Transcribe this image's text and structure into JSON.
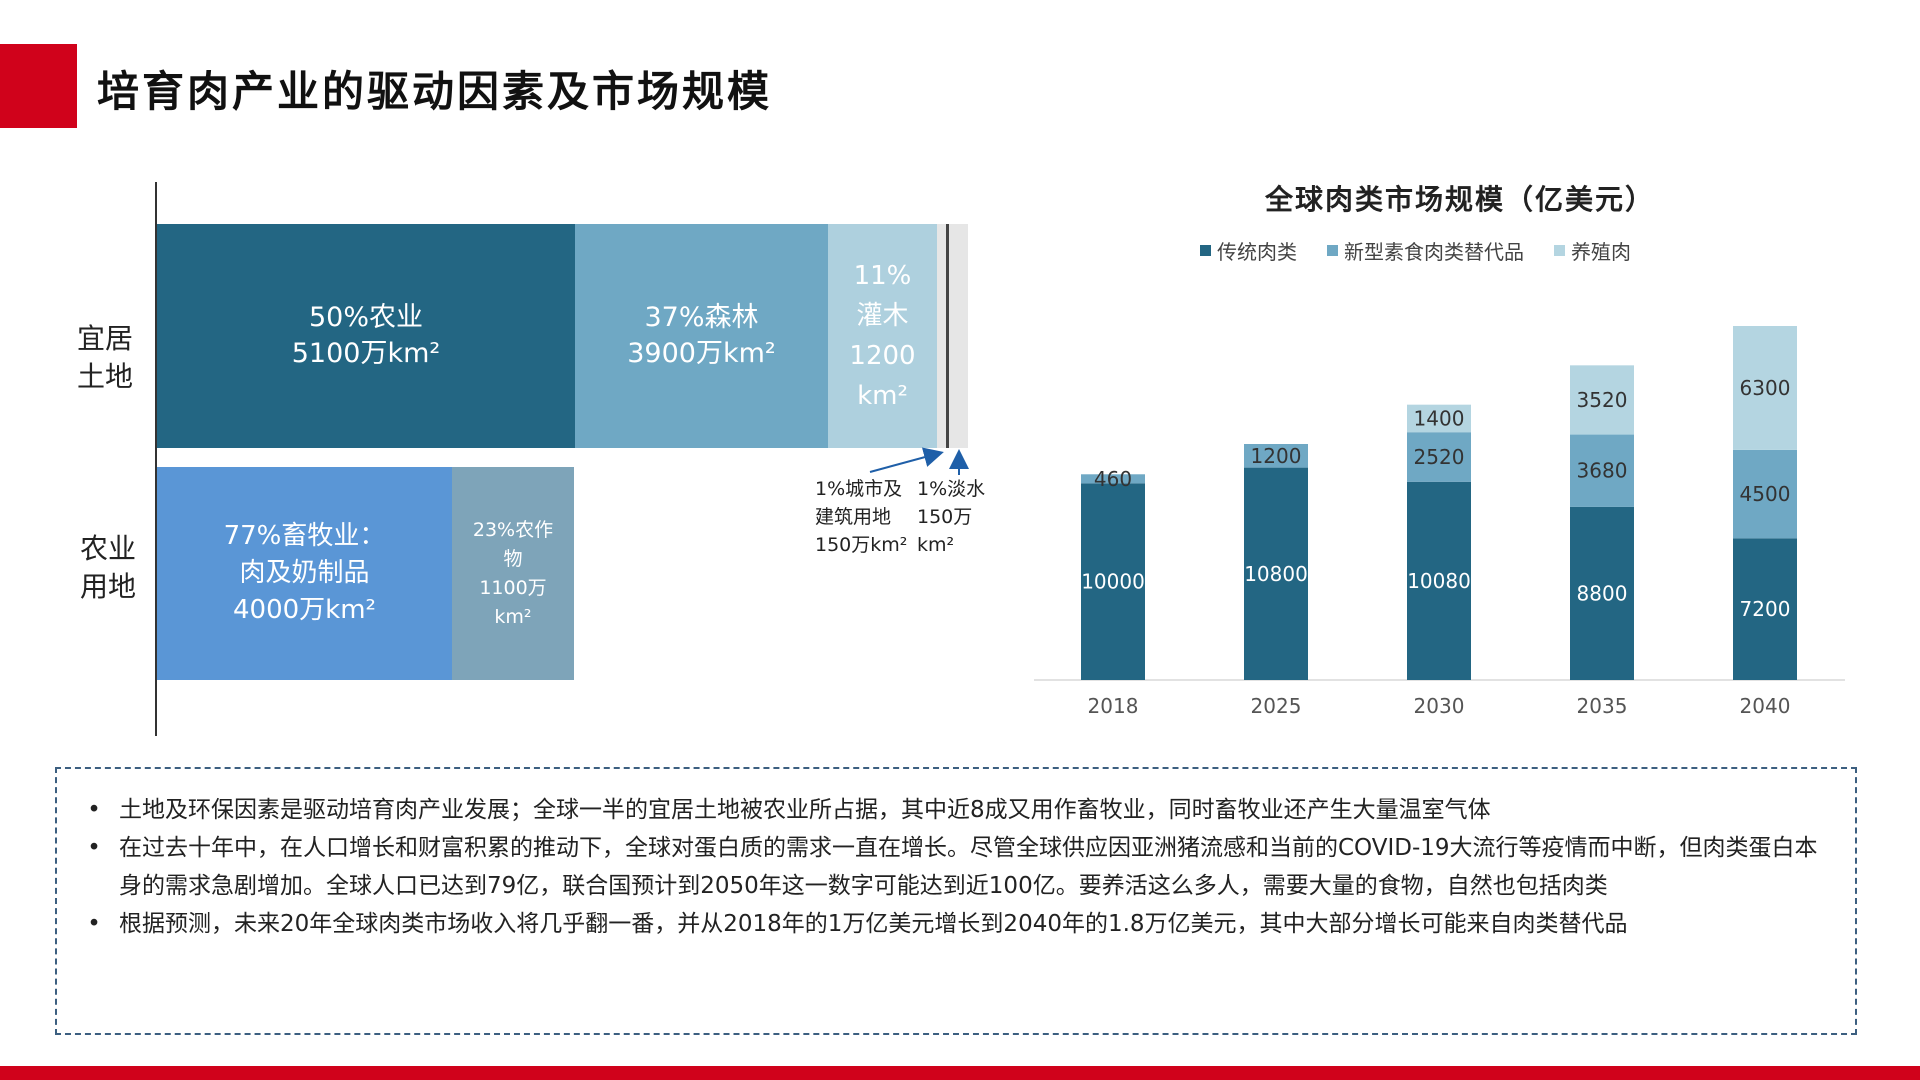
{
  "title": "培育肉产业的驱动因素及市场规模",
  "land": {
    "rows": [
      {
        "label_lines": [
          "宜居",
          "土地"
        ]
      },
      {
        "label_lines": [
          "农业",
          "用地"
        ]
      }
    ],
    "habitable": [
      {
        "lines": [
          "50%农业",
          "5100万km²"
        ],
        "percent": 50,
        "color": "#236683"
      },
      {
        "lines": [
          "37%森林",
          "3900万km²"
        ],
        "percent": 37,
        "color": "#6fa8c4"
      },
      {
        "lines": [
          "11%",
          "灌木",
          "1200",
          "km²"
        ],
        "percent": 11,
        "color": "#aed0de"
      },
      {
        "lines": [],
        "percent": 1,
        "color": "#e6e6e6"
      },
      {
        "lines": [],
        "percent": 1,
        "color": "#e6e6e6"
      }
    ],
    "agricultural": [
      {
        "lines": [
          "77%畜牧业：",
          "肉及奶制品",
          "4000万km²"
        ],
        "percent": 77,
        "color": "#5a96d6"
      },
      {
        "lines": [
          "23%农作",
          "物",
          "1100万",
          "km²"
        ],
        "percent": 23,
        "color": "#7ea4b9"
      }
    ],
    "notes": [
      {
        "lines": [
          "1%城市及",
          "建筑用地",
          "150万km²"
        ]
      },
      {
        "lines": [
          "1%淡水",
          "150万",
          "km²"
        ]
      }
    ]
  },
  "chart_data": {
    "type": "bar",
    "stacked": true,
    "title": "全球肉类市场规模（亿美元）",
    "categories": [
      "2018",
      "2025",
      "2030",
      "2035",
      "2040"
    ],
    "series": [
      {
        "name": "传统肉类",
        "values": [
          10000,
          10800,
          10080,
          8800,
          7200
        ],
        "color": "#236683"
      },
      {
        "name": "新型素食肉类替代品",
        "values": [
          460,
          1200,
          2520,
          3680,
          4500
        ],
        "color": "#6fa8c4"
      },
      {
        "name": "养殖肉",
        "values": [
          0,
          0,
          1400,
          3520,
          6300
        ],
        "color": "#b4d5e1"
      }
    ],
    "data_labels": [
      [
        "10000",
        "10800",
        "10080",
        "8800",
        "7200"
      ],
      [
        "460",
        "1200",
        "2520",
        "3680",
        "4500"
      ],
      [
        "",
        "",
        "1400",
        "3520",
        "6300"
      ]
    ],
    "legend_position": "top",
    "grid": false
  },
  "notes": [
    {
      "bullet": "•",
      "text": "土地及环保因素是驱动培育肉产业发展；全球一半的宜居土地被农业所占据，其中近8成又用作畜牧业，同时畜牧业还产生大量温室气体"
    },
    {
      "bullet": "•",
      "text": "在过去十年中，在人口增长和财富积累的推动下，全球对蛋白质的需求一直在增长。尽管全球供应因亚洲猪流感和当前的COVID-19大流行等疫情而中断，但肉类蛋白本身的需求急剧增加。全球人口已达到79亿，联合国预计到2050年这一数字可能达到近100亿。要养活这么多人，需要大量的食物，自然也包括肉类"
    },
    {
      "bullet": "•",
      "text": "根据预测，未来20年全球肉类市场收入将几乎翻一番，并从2018年的1万亿美元增长到2040年的1.8万亿美元，其中大部分增长可能来自肉类替代品"
    }
  ]
}
